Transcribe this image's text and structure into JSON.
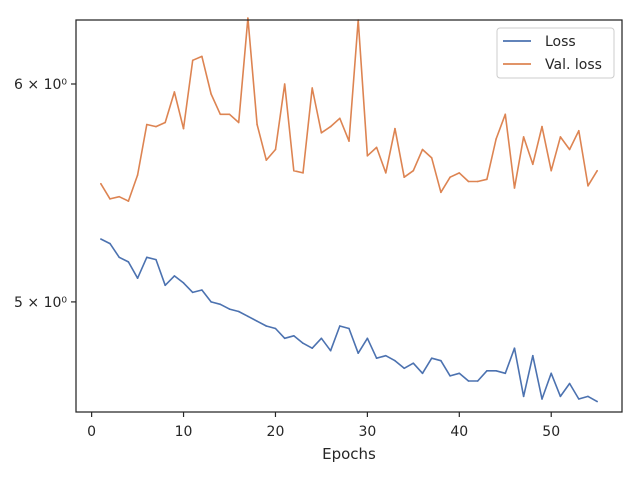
{
  "chart_data": {
    "type": "line",
    "title": "",
    "xlabel": "Epochs",
    "ylabel": "",
    "yscale": "log",
    "xlim": [
      -1.7,
      57.7
    ],
    "ylim": [
      4.56,
      6.33
    ],
    "xticks": [
      0,
      10,
      20,
      30,
      40,
      50
    ],
    "xtick_labels": [
      "0",
      "10",
      "20",
      "30",
      "40",
      "50"
    ],
    "yticks": [
      5,
      6
    ],
    "ytick_labels": [
      "5 × 10⁰",
      "6 × 10⁰"
    ],
    "grid": false,
    "legend_position": "top-right",
    "x": [
      1,
      2,
      3,
      4,
      5,
      6,
      7,
      8,
      9,
      10,
      11,
      12,
      13,
      14,
      15,
      16,
      17,
      18,
      19,
      20,
      21,
      22,
      23,
      24,
      25,
      26,
      27,
      28,
      29,
      30,
      31,
      32,
      33,
      34,
      35,
      36,
      37,
      38,
      39,
      40,
      41,
      42,
      43,
      44,
      45,
      46,
      47,
      48,
      49,
      50,
      51,
      52,
      53,
      54,
      55
    ],
    "series": [
      {
        "name": "Loss",
        "color": "#4c72b0",
        "values": [
          5.27,
          5.25,
          5.19,
          5.17,
          5.1,
          5.19,
          5.18,
          5.07,
          5.11,
          5.08,
          5.04,
          5.05,
          5.0,
          4.99,
          4.97,
          4.96,
          4.94,
          4.92,
          4.9,
          4.89,
          4.85,
          4.86,
          4.83,
          4.81,
          4.85,
          4.8,
          4.9,
          4.89,
          4.79,
          4.85,
          4.77,
          4.78,
          4.76,
          4.73,
          4.75,
          4.71,
          4.77,
          4.76,
          4.7,
          4.71,
          4.68,
          4.68,
          4.72,
          4.72,
          4.71,
          4.81,
          4.62,
          4.78,
          4.61,
          4.71,
          4.62,
          4.67,
          4.61,
          4.62,
          4.6
        ]
      },
      {
        "name": "Val. loss",
        "color": "#dd8452",
        "values": [
          5.52,
          5.45,
          5.46,
          5.44,
          5.56,
          5.8,
          5.79,
          5.81,
          5.96,
          5.78,
          6.12,
          6.14,
          5.95,
          5.85,
          5.85,
          5.81,
          6.34,
          5.8,
          5.63,
          5.68,
          6.0,
          5.58,
          5.57,
          5.98,
          5.76,
          5.79,
          5.83,
          5.72,
          6.33,
          5.65,
          5.69,
          5.57,
          5.78,
          5.55,
          5.58,
          5.68,
          5.64,
          5.48,
          5.55,
          5.57,
          5.53,
          5.53,
          5.54,
          5.73,
          5.85,
          5.5,
          5.74,
          5.61,
          5.79,
          5.58,
          5.74,
          5.68,
          5.77,
          5.51,
          5.58
        ]
      }
    ]
  }
}
